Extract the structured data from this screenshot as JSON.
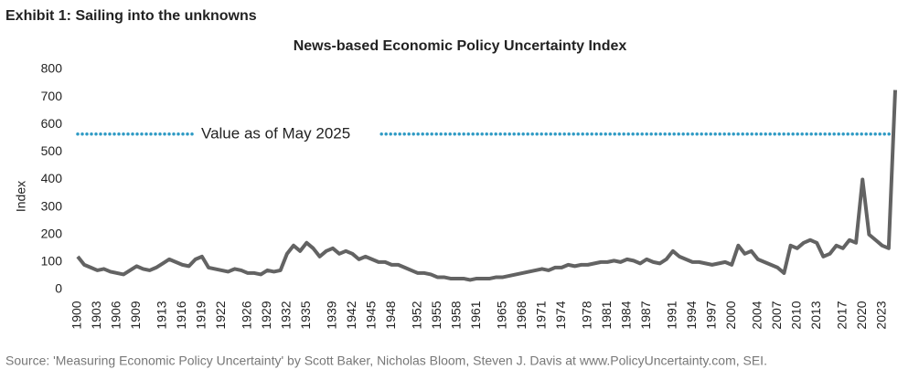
{
  "chart_data": {
    "type": "line",
    "title": "Exhibit 1: Sailing into the unknowns",
    "subtitle": "News-based Economic Policy Uncertainty Index",
    "y_label": "Index",
    "source": "Source: 'Measuring Economic Policy Uncertainty' by Scott Baker, Nicholas Bloom, Steven J. Davis at www.PolicyUncertainty.com, SEI.",
    "reference_line": {
      "value": 565,
      "label": "Value as of May 2025",
      "color": "#2e9ac4"
    },
    "x": [
      1900,
      1901,
      1902,
      1903,
      1904,
      1905,
      1906,
      1907,
      1908,
      1909,
      1910,
      1911,
      1912,
      1913,
      1914,
      1915,
      1916,
      1917,
      1918,
      1919,
      1920,
      1921,
      1922,
      1923,
      1924,
      1925,
      1926,
      1927,
      1928,
      1929,
      1930,
      1931,
      1932,
      1933,
      1934,
      1935,
      1936,
      1937,
      1938,
      1939,
      1940,
      1941,
      1942,
      1943,
      1944,
      1945,
      1946,
      1947,
      1948,
      1949,
      1950,
      1951,
      1952,
      1953,
      1954,
      1955,
      1956,
      1957,
      1958,
      1959,
      1960,
      1961,
      1962,
      1963,
      1964,
      1965,
      1966,
      1967,
      1968,
      1969,
      1970,
      1971,
      1972,
      1973,
      1974,
      1975,
      1976,
      1977,
      1978,
      1979,
      1980,
      1981,
      1982,
      1983,
      1984,
      1985,
      1986,
      1987,
      1988,
      1989,
      1990,
      1991,
      1992,
      1993,
      1994,
      1995,
      1996,
      1997,
      1998,
      1999,
      2000,
      2001,
      2002,
      2003,
      2004,
      2005,
      2006,
      2007,
      2008,
      2009,
      2010,
      2011,
      2012,
      2013,
      2014,
      2015,
      2016,
      2017,
      2018,
      2019,
      2020,
      2021,
      2022,
      2023,
      2024,
      2025
    ],
    "series": [
      {
        "name": "Index",
        "color": "#636363",
        "values": [
          120,
          90,
          80,
          70,
          75,
          65,
          60,
          55,
          70,
          85,
          75,
          70,
          80,
          95,
          110,
          100,
          90,
          85,
          110,
          120,
          80,
          75,
          70,
          65,
          75,
          70,
          60,
          60,
          55,
          70,
          65,
          70,
          130,
          160,
          140,
          170,
          150,
          120,
          140,
          150,
          130,
          140,
          130,
          110,
          120,
          110,
          100,
          100,
          90,
          90,
          80,
          70,
          60,
          60,
          55,
          45,
          45,
          40,
          40,
          40,
          35,
          40,
          40,
          40,
          45,
          45,
          50,
          55,
          60,
          65,
          70,
          75,
          70,
          80,
          80,
          90,
          85,
          90,
          90,
          95,
          100,
          100,
          105,
          100,
          110,
          105,
          95,
          110,
          100,
          95,
          110,
          140,
          120,
          110,
          100,
          100,
          95,
          90,
          95,
          100,
          90,
          160,
          130,
          140,
          110,
          100,
          90,
          80,
          60,
          160,
          150,
          170,
          180,
          170,
          120,
          130,
          160,
          150,
          180,
          170,
          400,
          200,
          180,
          160,
          150,
          725
        ]
      }
    ],
    "xlim": [
      1900,
      2025
    ],
    "xticks": [
      1900,
      1903,
      1906,
      1909,
      1913,
      1916,
      1919,
      1922,
      1926,
      1929,
      1932,
      1935,
      1939,
      1942,
      1945,
      1948,
      1952,
      1955,
      1958,
      1961,
      1965,
      1968,
      1971,
      1974,
      1978,
      1981,
      1984,
      1987,
      1991,
      1994,
      1997,
      2000,
      2004,
      2007,
      2010,
      2013,
      2017,
      2020,
      2023
    ],
    "ylim": [
      0,
      800
    ],
    "yticks": [
      0,
      100,
      200,
      300,
      400,
      500,
      600,
      700,
      800
    ]
  }
}
